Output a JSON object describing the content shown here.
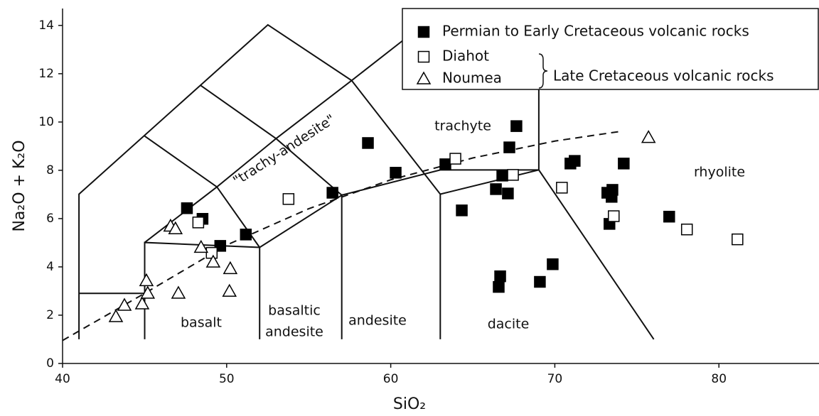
{
  "chart_data": {
    "type": "scatter",
    "x_label": "SiO₂",
    "y_label": "Na₂O + K₂O",
    "xlim": [
      40,
      86.1
    ],
    "ylim": [
      0,
      14.7
    ],
    "xticks": [
      40,
      50,
      60,
      70,
      80
    ],
    "yticks": [
      0,
      2,
      4,
      6,
      8,
      10,
      12,
      14
    ],
    "legend_position": "upper right",
    "legend_group": "Late Cretaceous volcanic rocks",
    "annotations": [
      "basalt",
      "basaltic",
      "andesite",
      "andesite",
      "dacite",
      "rhyolite",
      "trachyte",
      "\"trachy-andesite\""
    ],
    "series": [
      {
        "name": "Permian to Early Cretaceous volcanic rocks",
        "color": "#000000",
        "marker": "filled-square",
        "x": [
          47.58,
          48.53,
          49.61,
          51.17,
          56.45,
          58.61,
          60.3,
          63.33,
          64.33,
          66.41,
          66.8,
          67.14,
          67.23,
          67.66,
          66.67,
          66.58,
          69.09,
          69.87,
          70.95,
          71.21,
          73.2,
          73.51,
          73.46,
          73.33,
          74.2,
          76.97
        ],
        "y": [
          6.43,
          5.99,
          4.87,
          5.34,
          7.07,
          9.13,
          7.9,
          8.25,
          6.34,
          7.22,
          7.78,
          7.04,
          8.95,
          9.83,
          3.61,
          3.17,
          3.38,
          4.11,
          8.28,
          8.39,
          7.07,
          7.19,
          6.9,
          5.78,
          8.28,
          6.08
        ]
      },
      {
        "name": "Diahot",
        "color": "#000000",
        "marker": "open-square",
        "x": [
          48.27,
          49.09,
          53.77,
          63.94,
          67.45,
          70.43,
          73.59,
          78.05,
          81.13
        ],
        "y": [
          5.84,
          4.58,
          6.81,
          8.48,
          7.81,
          7.28,
          6.1,
          5.55,
          5.14
        ]
      },
      {
        "name": "Noumea",
        "color": "#000000",
        "marker": "open-triangle",
        "x": [
          43.25,
          43.77,
          44.85,
          45.11,
          45.19,
          46.58,
          46.88,
          47.06,
          48.44,
          49.18,
          50.22,
          50.17,
          75.71
        ],
        "y": [
          1.94,
          2.41,
          2.47,
          3.43,
          2.91,
          5.69,
          5.58,
          2.91,
          4.81,
          4.2,
          3.93,
          2.99,
          9.36
        ]
      }
    ]
  }
}
